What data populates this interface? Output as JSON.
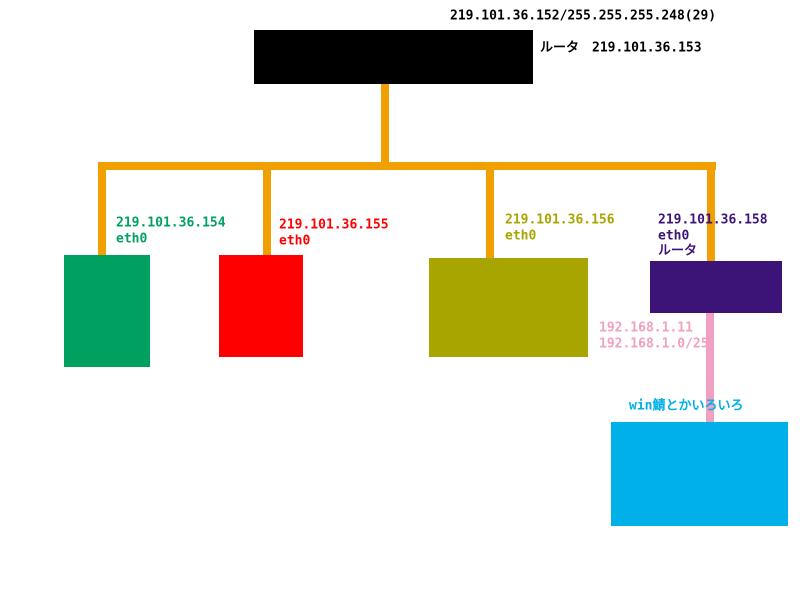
{
  "header": {
    "subnet": "219.101.36.152/255.255.255.248(29)",
    "router_label": "ルータ",
    "router_ip": "219.101.36.153"
  },
  "nodes": [
    {
      "ip": "219.101.36.154",
      "iface": "eth0"
    },
    {
      "ip": "219.101.36.155",
      "iface": "eth0"
    },
    {
      "ip": "219.101.36.156",
      "iface": "eth0"
    },
    {
      "ip": "219.101.36.158",
      "iface": "eth0",
      "role": "ルータ"
    }
  ],
  "lan": {
    "ip": "192.168.1.11",
    "subnet": "192.168.1.0/25",
    "label": "win鯖とかいろいろ"
  }
}
